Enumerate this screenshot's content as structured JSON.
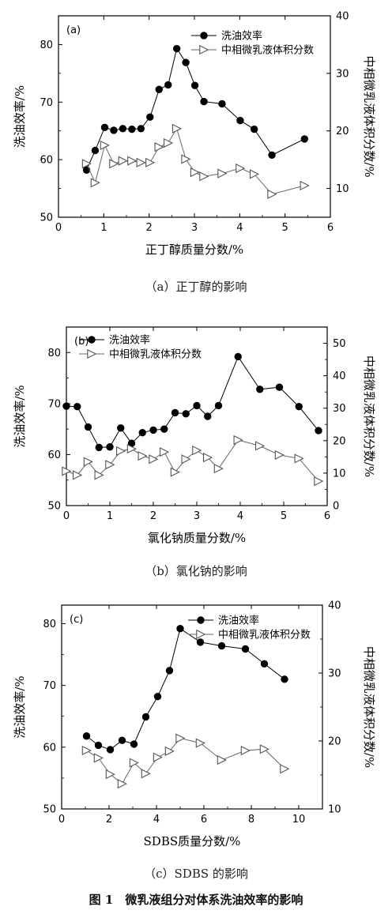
{
  "figure": {
    "title": "图 1　微乳液组分对体系洗油效率的影响"
  },
  "chart_data": [
    {
      "type": "line",
      "panel_label": "(a)",
      "caption": "（a）正丁醇的影响",
      "xlabel": "正丁醇质量分数/%",
      "ylabel_left": "洗油效率/%",
      "ylabel_right": "中相微乳液体积分数/%",
      "xlim": [
        0,
        6
      ],
      "x_ticks": [
        "0",
        "1",
        "2",
        "3",
        "4",
        "5",
        "6"
      ],
      "ylim_left": [
        50,
        85
      ],
      "y_ticks_left": [
        "50",
        "60",
        "70",
        "80"
      ],
      "ylim_right": [
        5,
        40
      ],
      "y_ticks_right": [
        "10",
        "20",
        "30",
        "40"
      ],
      "legend_position": "top-right",
      "series": [
        {
          "name": "洗油效率",
          "axis": "left",
          "marker": "filled-circle",
          "points": [
            [
              0.62,
              58.2
            ],
            [
              0.81,
              61.6
            ],
            [
              1.02,
              65.6
            ],
            [
              1.22,
              65.1
            ],
            [
              1.42,
              65.4
            ],
            [
              1.62,
              65.3
            ],
            [
              1.82,
              65.4
            ],
            [
              2.02,
              67.4
            ],
            [
              2.22,
              72.2
            ],
            [
              2.42,
              73.0
            ],
            [
              2.61,
              79.3
            ],
            [
              2.81,
              76.9
            ],
            [
              3.01,
              72.9
            ],
            [
              3.21,
              70.1
            ],
            [
              3.61,
              69.7
            ],
            [
              4.01,
              66.8
            ],
            [
              4.32,
              65.3
            ],
            [
              4.71,
              60.8
            ],
            [
              5.43,
              63.6
            ]
          ]
        },
        {
          "name": "中相微乳液体积分数",
          "axis": "right",
          "marker": "open-triangle",
          "points": [
            [
              0.62,
              14.3
            ],
            [
              0.81,
              11.0
            ],
            [
              1.02,
              17.5
            ],
            [
              1.22,
              14.3
            ],
            [
              1.42,
              14.8
            ],
            [
              1.62,
              14.8
            ],
            [
              1.82,
              14.5
            ],
            [
              2.02,
              14.5
            ],
            [
              2.22,
              17.2
            ],
            [
              2.42,
              17.9
            ],
            [
              2.61,
              20.4
            ],
            [
              2.81,
              15.1
            ],
            [
              3.01,
              12.8
            ],
            [
              3.21,
              12.1
            ],
            [
              3.61,
              12.6
            ],
            [
              4.01,
              13.5
            ],
            [
              4.32,
              12.5
            ],
            [
              4.71,
              9.0
            ],
            [
              5.43,
              10.5
            ]
          ]
        }
      ]
    },
    {
      "type": "line",
      "panel_label": "(b)",
      "caption": "（b）氯化钠的影响",
      "xlabel": "氯化钠质量分数/%",
      "ylabel_left": "洗油效率/%",
      "ylabel_right": "中相微乳液体积分数/%",
      "xlim": [
        0,
        6
      ],
      "x_ticks": [
        "0",
        "1",
        "2",
        "3",
        "4",
        "5",
        "6"
      ],
      "ylim_left": [
        50,
        85
      ],
      "y_ticks_left": [
        "50",
        "60",
        "70",
        "80"
      ],
      "ylim_right": [
        0,
        55
      ],
      "y_ticks_right": [
        "0",
        "10",
        "20",
        "30",
        "40",
        "50"
      ],
      "legend_position": "top-left",
      "series": [
        {
          "name": "洗油效率",
          "axis": "left",
          "marker": "filled-circle",
          "points": [
            [
              0.0,
              69.5
            ],
            [
              0.25,
              69.4
            ],
            [
              0.5,
              65.4
            ],
            [
              0.75,
              61.4
            ],
            [
              1.0,
              61.5
            ],
            [
              1.25,
              65.2
            ],
            [
              1.5,
              62.2
            ],
            [
              1.75,
              64.3
            ],
            [
              2.0,
              64.8
            ],
            [
              2.25,
              65.0
            ],
            [
              2.5,
              68.2
            ],
            [
              2.75,
              68.0
            ],
            [
              3.0,
              69.6
            ],
            [
              3.25,
              67.5
            ],
            [
              3.5,
              69.6
            ],
            [
              3.95,
              79.2
            ],
            [
              4.45,
              72.8
            ],
            [
              4.9,
              73.2
            ],
            [
              5.35,
              69.4
            ],
            [
              5.8,
              64.7
            ]
          ]
        },
        {
          "name": "中相微乳液体积分数",
          "axis": "right",
          "marker": "open-triangle",
          "points": [
            [
              0.0,
              10.6
            ],
            [
              0.25,
              9.4
            ],
            [
              0.5,
              13.5
            ],
            [
              0.75,
              9.4
            ],
            [
              1.0,
              12.6
            ],
            [
              1.25,
              16.8
            ],
            [
              1.5,
              17.5
            ],
            [
              1.75,
              15.3
            ],
            [
              2.0,
              14.3
            ],
            [
              2.25,
              16.5
            ],
            [
              2.5,
              10.3
            ],
            [
              2.75,
              14.3
            ],
            [
              3.0,
              17.0
            ],
            [
              3.25,
              14.8
            ],
            [
              3.5,
              11.4
            ],
            [
              3.95,
              20.2
            ],
            [
              4.45,
              18.4
            ],
            [
              4.9,
              15.6
            ],
            [
              5.35,
              14.5
            ],
            [
              5.8,
              7.5
            ]
          ]
        }
      ]
    },
    {
      "type": "line",
      "panel_label": "(c)",
      "caption": "（c）SDBS 的影响",
      "xlabel": "SDBS质量分数/%",
      "ylabel_left": "洗油效率/%",
      "ylabel_right": "中相微乳液体积分数/%",
      "xlim": [
        0,
        11
      ],
      "x_ticks": [
        "0",
        "2",
        "4",
        "6",
        "8",
        "10"
      ],
      "ylim_left": [
        50,
        83
      ],
      "y_ticks_left": [
        "50",
        "60",
        "70",
        "80"
      ],
      "ylim_right": [
        10,
        40
      ],
      "y_ticks_right": [
        "10",
        "20",
        "30",
        "40"
      ],
      "legend_position": "top-right",
      "series": [
        {
          "name": "洗油效率",
          "axis": "left",
          "marker": "filled-circle",
          "points": [
            [
              1.05,
              61.8
            ],
            [
              1.55,
              60.3
            ],
            [
              2.05,
              59.6
            ],
            [
              2.55,
              61.1
            ],
            [
              3.05,
              60.5
            ],
            [
              3.55,
              64.9
            ],
            [
              4.05,
              68.2
            ],
            [
              4.55,
              72.4
            ],
            [
              5.0,
              79.2
            ],
            [
              5.85,
              77.0
            ],
            [
              6.75,
              76.4
            ],
            [
              7.75,
              75.9
            ],
            [
              8.55,
              73.5
            ],
            [
              9.4,
              71.0
            ]
          ]
        },
        {
          "name": "中相微乳液体积分数",
          "axis": "right",
          "marker": "open-triangle",
          "points": [
            [
              1.05,
              18.6
            ],
            [
              1.55,
              17.5
            ],
            [
              2.05,
              15.1
            ],
            [
              2.55,
              13.7
            ],
            [
              3.05,
              16.8
            ],
            [
              3.55,
              15.2
            ],
            [
              4.05,
              17.6
            ],
            [
              4.55,
              18.5
            ],
            [
              5.0,
              20.4
            ],
            [
              5.85,
              19.7
            ],
            [
              6.75,
              17.2
            ],
            [
              7.75,
              18.6
            ],
            [
              8.55,
              18.8
            ],
            [
              9.4,
              15.9
            ]
          ]
        }
      ]
    }
  ]
}
